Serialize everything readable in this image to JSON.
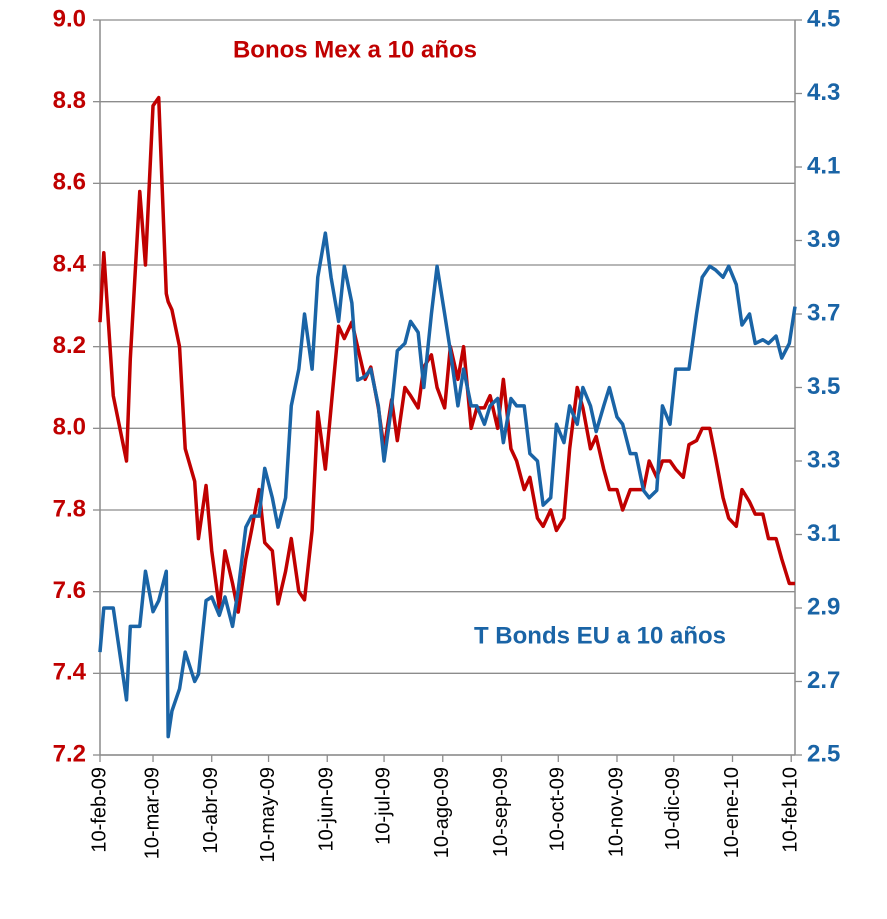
{
  "chart_data": {
    "type": "line",
    "x": [
      "2009-02-10",
      "2009-02-12",
      "2009-02-17",
      "2009-02-24",
      "2009-02-26",
      "2009-03-03",
      "2009-03-06",
      "2009-03-10",
      "2009-03-13",
      "2009-03-17",
      "2009-03-18",
      "2009-03-20",
      "2009-03-24",
      "2009-03-27",
      "2009-04-01",
      "2009-04-03",
      "2009-04-07",
      "2009-04-10",
      "2009-04-14",
      "2009-04-17",
      "2009-04-21",
      "2009-04-24",
      "2009-04-28",
      "2009-05-01",
      "2009-05-05",
      "2009-05-08",
      "2009-05-12",
      "2009-05-15",
      "2009-05-19",
      "2009-05-22",
      "2009-05-26",
      "2009-05-29",
      "2009-06-02",
      "2009-06-05",
      "2009-06-09",
      "2009-06-12",
      "2009-06-16",
      "2009-06-19",
      "2009-06-23",
      "2009-06-26",
      "2009-06-30",
      "2009-07-03",
      "2009-07-07",
      "2009-07-10",
      "2009-07-14",
      "2009-07-17",
      "2009-07-21",
      "2009-07-24",
      "2009-07-28",
      "2009-07-31",
      "2009-08-04",
      "2009-08-07",
      "2009-08-11",
      "2009-08-14",
      "2009-08-18",
      "2009-08-21",
      "2009-08-25",
      "2009-08-28",
      "2009-09-01",
      "2009-09-04",
      "2009-09-08",
      "2009-09-11",
      "2009-09-15",
      "2009-09-18",
      "2009-09-22",
      "2009-09-25",
      "2009-09-29",
      "2009-10-02",
      "2009-10-06",
      "2009-10-09",
      "2009-10-13",
      "2009-10-16",
      "2009-10-20",
      "2009-10-23",
      "2009-10-27",
      "2009-10-30",
      "2009-11-03",
      "2009-11-06",
      "2009-11-10",
      "2009-11-13",
      "2009-11-17",
      "2009-11-20",
      "2009-11-24",
      "2009-11-27",
      "2009-12-01",
      "2009-12-04",
      "2009-12-08",
      "2009-12-11",
      "2009-12-15",
      "2009-12-18",
      "2009-12-22",
      "2009-12-25",
      "2009-12-29",
      "2010-01-01",
      "2010-01-05",
      "2010-01-08",
      "2010-01-12",
      "2010-01-15",
      "2010-01-19",
      "2010-01-22",
      "2010-01-26",
      "2010-01-29",
      "2010-02-02",
      "2010-02-05",
      "2010-02-09",
      "2010-02-12"
    ],
    "series": [
      {
        "name": "Bonos Mex a 10 años",
        "color": "#c00000",
        "axis": "y",
        "values": [
          8.26,
          8.43,
          8.08,
          7.92,
          8.17,
          8.58,
          8.4,
          8.79,
          8.81,
          8.33,
          8.31,
          8.29,
          8.2,
          7.95,
          7.87,
          7.73,
          7.86,
          7.7,
          7.56,
          7.7,
          7.62,
          7.55,
          7.68,
          7.75,
          7.85,
          7.72,
          7.7,
          7.57,
          7.65,
          7.73,
          7.6,
          7.58,
          7.75,
          8.04,
          7.9,
          8.05,
          8.25,
          8.22,
          8.26,
          8.2,
          8.12,
          8.15,
          8.05,
          7.95,
          8.07,
          7.97,
          8.1,
          8.08,
          8.05,
          8.15,
          8.18,
          8.1,
          8.05,
          8.2,
          8.12,
          8.2,
          8.0,
          8.05,
          8.05,
          8.08,
          8.0,
          8.12,
          7.95,
          7.92,
          7.85,
          7.88,
          7.78,
          7.76,
          7.8,
          7.75,
          7.78,
          7.95,
          8.1,
          8.05,
          7.95,
          7.98,
          7.9,
          7.85,
          7.85,
          7.8,
          7.85,
          7.85,
          7.85,
          7.92,
          7.88,
          7.92,
          7.92,
          7.9,
          7.88,
          7.96,
          7.97,
          8.0,
          8.0,
          7.93,
          7.83,
          7.78,
          7.76,
          7.85,
          7.82,
          7.79,
          7.79,
          7.73,
          7.73,
          7.68,
          7.62,
          7.62
        ]
      },
      {
        "name": "T Bonds EU a 10 años",
        "color": "#1a64a6",
        "axis": "y2",
        "values": [
          2.78,
          2.9,
          2.9,
          2.65,
          2.85,
          2.85,
          3.0,
          2.89,
          2.92,
          3.0,
          2.55,
          2.62,
          2.68,
          2.78,
          2.7,
          2.72,
          2.92,
          2.93,
          2.88,
          2.93,
          2.85,
          2.95,
          3.12,
          3.15,
          3.15,
          3.28,
          3.2,
          3.12,
          3.2,
          3.45,
          3.55,
          3.7,
          3.55,
          3.8,
          3.92,
          3.8,
          3.68,
          3.83,
          3.73,
          3.52,
          3.53,
          3.55,
          3.45,
          3.3,
          3.45,
          3.6,
          3.62,
          3.68,
          3.65,
          3.5,
          3.7,
          3.83,
          3.7,
          3.6,
          3.45,
          3.55,
          3.45,
          3.45,
          3.4,
          3.45,
          3.47,
          3.35,
          3.47,
          3.45,
          3.45,
          3.32,
          3.3,
          3.18,
          3.2,
          3.4,
          3.35,
          3.45,
          3.4,
          3.5,
          3.45,
          3.38,
          3.45,
          3.5,
          3.42,
          3.4,
          3.32,
          3.32,
          3.22,
          3.2,
          3.22,
          3.45,
          3.4,
          3.55,
          3.55,
          3.55,
          3.7,
          3.8,
          3.83,
          3.82,
          3.8,
          3.83,
          3.78,
          3.67,
          3.7,
          3.62,
          3.63,
          3.62,
          3.64,
          3.58,
          3.62,
          3.72
        ]
      }
    ],
    "xlim": [
      "2009-02-10",
      "2010-02-12"
    ],
    "xticks": [
      {
        "value": "2009-02-10",
        "label": "10-feb-09"
      },
      {
        "value": "2009-03-10",
        "label": "10-mar-09"
      },
      {
        "value": "2009-04-10",
        "label": "10-abr-09"
      },
      {
        "value": "2009-05-10",
        "label": "10-may-09"
      },
      {
        "value": "2009-06-10",
        "label": "10-jun-09"
      },
      {
        "value": "2009-07-10",
        "label": "10-jul-09"
      },
      {
        "value": "2009-08-10",
        "label": "10-ago-09"
      },
      {
        "value": "2009-09-10",
        "label": "10-sep-09"
      },
      {
        "value": "2009-10-10",
        "label": "10-oct-09"
      },
      {
        "value": "2009-11-10",
        "label": "10-nov-09"
      },
      {
        "value": "2009-12-10",
        "label": "10-dic-09"
      },
      {
        "value": "2010-01-10",
        "label": "10-ene-10"
      },
      {
        "value": "2010-02-10",
        "label": "10-feb-10"
      }
    ],
    "ylim": [
      7.2,
      9.0
    ],
    "yticks": [
      7.2,
      7.4,
      7.6,
      7.8,
      {
        "value": 8.0,
        "label": "8.0"
      },
      8.2,
      8.4,
      8.6,
      8.8,
      {
        "value": 9.0,
        "label": "9.0"
      }
    ],
    "y2lim": [
      2.5,
      4.5
    ],
    "y2ticks": [
      2.5,
      2.7,
      2.9,
      3.1,
      3.3,
      3.5,
      3.7,
      3.9,
      4.1,
      4.3,
      4.5
    ],
    "grid": true
  }
}
